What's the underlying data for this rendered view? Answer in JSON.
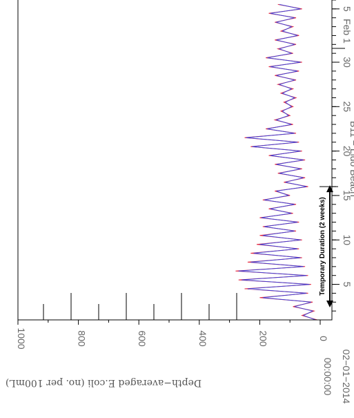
{
  "chart_data": {
    "type": "line",
    "orientation": "rotated-90-clockwise",
    "ylabel": "Depth−averaged E.coli (no. per 100mL)",
    "ylim": [
      0,
      1000
    ],
    "y_ticks": [
      "0",
      "200",
      "400",
      "600",
      "800",
      "1000"
    ],
    "x_origin_label_line1": "00:00:00",
    "x_origin_label_line2": "02−01−2014",
    "x_day_ticks": [
      "5",
      "10",
      "15",
      "20",
      "25",
      "30",
      "5"
    ],
    "x_day_values": [
      5,
      10,
      15,
      20,
      25,
      30,
      36
    ],
    "x_month_label": "Feb 1",
    "xlim_days": [
      1,
      37
    ],
    "site_label": "B11 − Lido Beach",
    "annotation": "Temporary Duration (2 weeks)",
    "annotation_range_days": [
      1,
      16
    ],
    "threshold_markers": [
      {
        "day": 2.4,
        "value": 350
      },
      {
        "day": 5,
        "value": 500
      },
      {
        "day": 7.4,
        "value": 300
      },
      {
        "day": 10,
        "value": 600
      },
      {
        "day": 12.4,
        "value": 370
      },
      {
        "day": 15,
        "value": 700
      }
    ],
    "series": [
      {
        "color": "#e0102a",
        "x": [
          1.0,
          1.5,
          2.0,
          2.5,
          3.0,
          3.5,
          4.0,
          4.5,
          5.0,
          5.5,
          6.0,
          6.5,
          7.0,
          7.5,
          8.0,
          8.5,
          9.0,
          9.5,
          10.0,
          10.5,
          11.0,
          11.5,
          12.0,
          12.5,
          13.0,
          13.5,
          14.0,
          14.5,
          15.0,
          15.5,
          16.0,
          16.5,
          17.0,
          17.5,
          18.0,
          18.5,
          19.0,
          19.5,
          20.0,
          20.5,
          21.0,
          21.5,
          22.0,
          22.5,
          23.0,
          23.5,
          24.0,
          24.5,
          25.0,
          25.5,
          26.0,
          26.5,
          27.0,
          27.5,
          28.0,
          28.5,
          29.0,
          29.5,
          30.0,
          30.5,
          31.0,
          31.5,
          32.0,
          32.5,
          33.0,
          33.5,
          34.0,
          34.5,
          35.0,
          35.5,
          36.0,
          36.5
        ],
        "y": [
          10,
          60,
          20,
          90,
          25,
          200,
          40,
          250,
          30,
          270,
          40,
          280,
          50,
          240,
          60,
          230,
          70,
          210,
          60,
          200,
          80,
          190,
          70,
          200,
          90,
          170,
          80,
          190,
          100,
          150,
          40,
          120,
          50,
          140,
          60,
          150,
          50,
          170,
          60,
          230,
          70,
          250,
          80,
          180,
          90,
          150,
          100,
          130,
          90,
          120,
          80,
          130,
          90,
          140,
          80,
          150,
          70,
          170,
          60,
          180,
          90,
          140,
          80,
          150,
          70,
          130,
          90,
          150,
          80,
          170,
          60,
          140
        ]
      },
      {
        "color": "#3040e0",
        "x": [
          1.0,
          1.5,
          2.0,
          2.5,
          3.0,
          3.5,
          4.0,
          4.5,
          5.0,
          5.5,
          6.0,
          6.5,
          7.0,
          7.5,
          8.0,
          8.5,
          9.0,
          9.5,
          10.0,
          10.5,
          11.0,
          11.5,
          12.0,
          12.5,
          13.0,
          13.5,
          14.0,
          14.5,
          15.0,
          15.5,
          16.0,
          16.5,
          17.0,
          17.5,
          18.0,
          18.5,
          19.0,
          19.5,
          20.0,
          20.5,
          21.0,
          21.5,
          22.0,
          22.5,
          23.0,
          23.5,
          24.0,
          24.5,
          25.0,
          25.5,
          26.0,
          26.5,
          27.0,
          27.5,
          28.0,
          28.5,
          29.0,
          29.5,
          30.0,
          30.5,
          31.0,
          31.5,
          32.0,
          32.5,
          33.0,
          33.5,
          34.0,
          34.5,
          35.0,
          35.5,
          36.0,
          36.5
        ],
        "y": [
          15,
          55,
          25,
          85,
          30,
          190,
          45,
          240,
          35,
          260,
          45,
          270,
          55,
          230,
          65,
          220,
          75,
          200,
          65,
          190,
          85,
          185,
          75,
          195,
          95,
          165,
          85,
          185,
          105,
          145,
          45,
          115,
          55,
          135,
          65,
          145,
          55,
          165,
          65,
          225,
          75,
          245,
          85,
          175,
          95,
          145,
          105,
          125,
          95,
          115,
          85,
          125,
          95,
          135,
          85,
          145,
          75,
          165,
          65,
          175,
          95,
          135,
          85,
          145,
          75,
          125,
          95,
          145,
          85,
          165,
          65,
          135
        ]
      }
    ]
  }
}
